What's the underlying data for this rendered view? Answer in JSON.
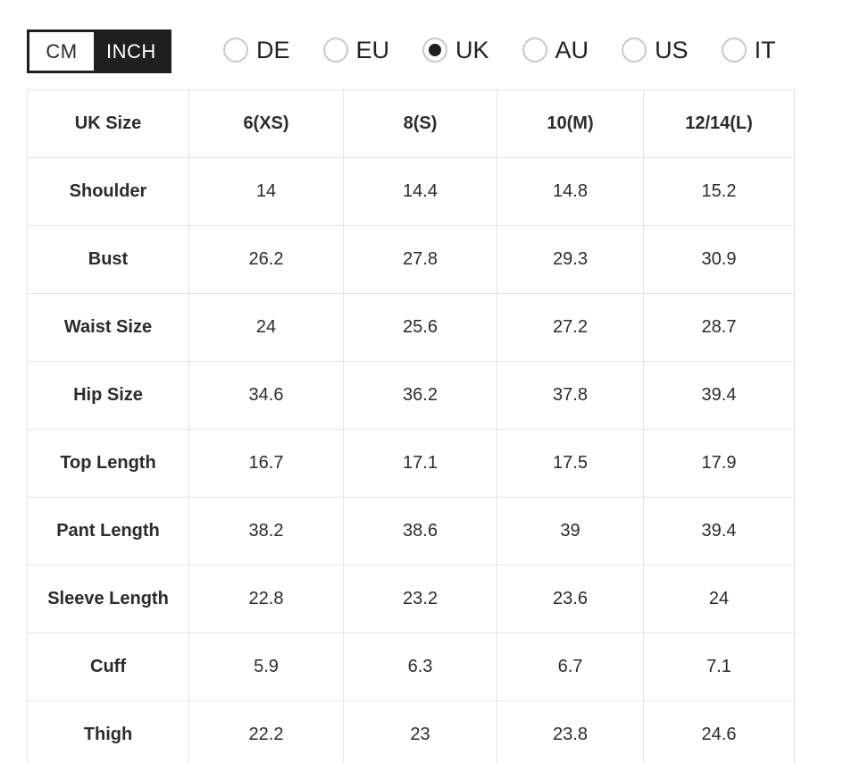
{
  "unit_toggle": {
    "options": [
      {
        "label": "CM",
        "selected": false
      },
      {
        "label": "INCH",
        "selected": true
      }
    ]
  },
  "region_radio_group": {
    "options": [
      {
        "label": "DE",
        "selected": false
      },
      {
        "label": "EU",
        "selected": false
      },
      {
        "label": "UK",
        "selected": true
      },
      {
        "label": "AU",
        "selected": false
      },
      {
        "label": "US",
        "selected": false
      },
      {
        "label": "IT",
        "selected": false
      }
    ]
  },
  "size_table": {
    "header": [
      "UK Size",
      "6(XS)",
      "8(S)",
      "10(M)",
      "12/14(L)"
    ],
    "rows": [
      {
        "label": "Shoulder",
        "values": [
          "14",
          "14.4",
          "14.8",
          "15.2"
        ]
      },
      {
        "label": "Bust",
        "values": [
          "26.2",
          "27.8",
          "29.3",
          "30.9"
        ]
      },
      {
        "label": "Waist Size",
        "values": [
          "24",
          "25.6",
          "27.2",
          "28.7"
        ]
      },
      {
        "label": "Hip Size",
        "values": [
          "34.6",
          "36.2",
          "37.8",
          "39.4"
        ]
      },
      {
        "label": "Top Length",
        "values": [
          "16.7",
          "17.1",
          "17.5",
          "17.9"
        ]
      },
      {
        "label": "Pant Length",
        "values": [
          "38.2",
          "38.6",
          "39",
          "39.4"
        ]
      },
      {
        "label": "Sleeve Length",
        "values": [
          "22.8",
          "23.2",
          "23.6",
          "24"
        ]
      },
      {
        "label": "Cuff",
        "values": [
          "5.9",
          "6.3",
          "6.7",
          "7.1"
        ]
      },
      {
        "label": "Thigh",
        "values": [
          "22.2",
          "23",
          "23.8",
          "24.6"
        ]
      }
    ]
  },
  "colors": {
    "accent_dark": "#1f1f1f",
    "table_border": "#e5e5e5",
    "radio_border": "#c9c9c9",
    "text": "#2b2b2b"
  }
}
